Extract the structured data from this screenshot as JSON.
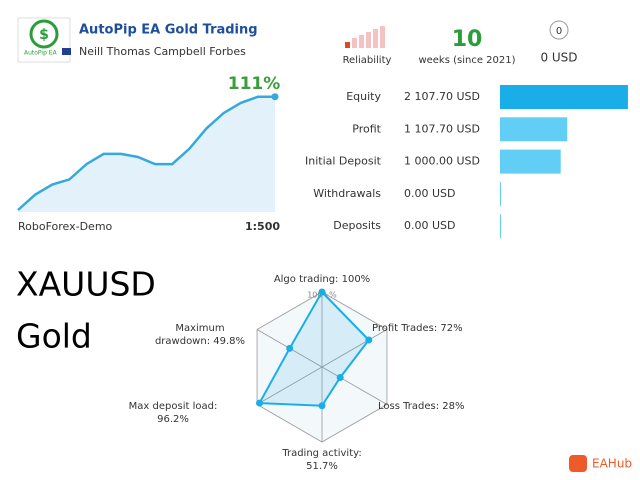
{
  "header": {
    "title": "AutoPip EA Gold Trading",
    "author": "Neill Thomas Campbell Forbes",
    "logo_text": "AutoPip EA"
  },
  "stats": {
    "reliability_label": "Reliability",
    "weeks": 10,
    "weeks_label": "weeks (since 2021)",
    "subscribers": 0,
    "price": "0 USD"
  },
  "growth": {
    "label": "111%",
    "values": [
      0,
      15,
      25,
      30,
      45,
      55,
      55,
      52,
      45,
      45,
      60,
      80,
      95,
      105,
      111,
      111
    ],
    "broker": "RoboForex-Demo",
    "leverage": "1:500"
  },
  "balance": {
    "rows": [
      {
        "label": "Equity",
        "text": "2 107.70 USD",
        "value": 2107.7
      },
      {
        "label": "Profit",
        "text": "1 107.70 USD",
        "value": 1107.7
      },
      {
        "label": "Initial Deposit",
        "text": "1 000.00 USD",
        "value": 1000.0
      },
      {
        "label": "Withdrawals",
        "text": "0.00 USD",
        "value": 0
      },
      {
        "label": "Deposits",
        "text": "0.00 USD",
        "value": 0
      }
    ]
  },
  "symbol": {
    "ticker": "XAUUSD",
    "name": "Gold"
  },
  "radar": {
    "ticks": [
      {
        "value": 0,
        "label": "0%"
      },
      {
        "value": 50,
        "label": "50%"
      },
      {
        "value": 100,
        "label": "100+%"
      }
    ],
    "axes": [
      {
        "label": "Algo trading: 100%",
        "value": 100
      },
      {
        "label": "Profit Trades: 72%",
        "value": 72
      },
      {
        "label": "Loss Trades: 28%",
        "value": 28
      },
      {
        "label": "Trading activity: 51.7%",
        "value": 51.7
      },
      {
        "label": "Max deposit load: 96.2%",
        "value": 96.2
      },
      {
        "label": "Maximum drawdown: 49.8%",
        "value": 49.8
      }
    ]
  },
  "watermark": "EAHub"
}
